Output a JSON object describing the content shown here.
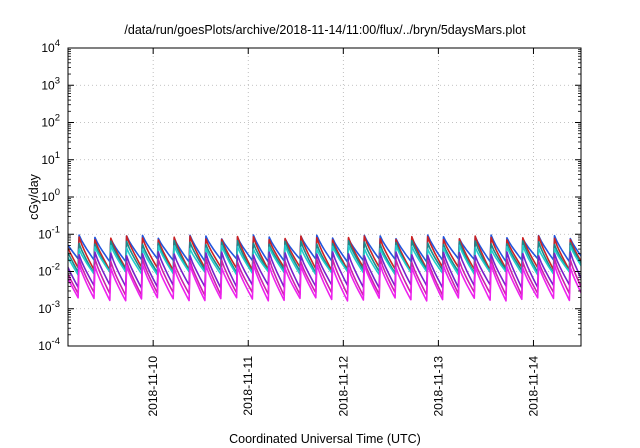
{
  "chart_data": {
    "type": "line",
    "title": "/data/run/goesPlots/archive/2018-11-14/11:00/flux/../bryn/5daysMars.plot",
    "xlabel": "Coordinated Universal Time (UTC)",
    "ylabel": "cGy/day",
    "yscale": "log",
    "ylim": [
      0.0001,
      10000
    ],
    "xlim": [
      "2018-11-09 02:30",
      "2018-11-14 12:00"
    ],
    "grid": true,
    "y_ticks": [
      {
        "base": "10",
        "exp": "-4"
      },
      {
        "base": "10",
        "exp": "-3"
      },
      {
        "base": "10",
        "exp": "-2"
      },
      {
        "base": "10",
        "exp": "-1"
      },
      {
        "base": "10",
        "exp": "0"
      },
      {
        "base": "10",
        "exp": "1"
      },
      {
        "base": "10",
        "exp": "2"
      },
      {
        "base": "10",
        "exp": "3"
      },
      {
        "base": "10",
        "exp": "4"
      }
    ],
    "x_ticks": [
      "2018-11-10",
      "2018-11-11",
      "2018-11-12",
      "2018-11-13",
      "2018-11-14"
    ],
    "sawtooth_period_hours": 4,
    "series": [
      {
        "color": "#2255dd",
        "peak": 0.085,
        "trough": 0.02
      },
      {
        "color": "#cc2222",
        "peak": 0.08,
        "trough": 0.012
      },
      {
        "color": "#1a8a8a",
        "peak": 0.06,
        "trough": 0.01
      },
      {
        "color": "#22cccc",
        "peak": 0.045,
        "trough": 0.009
      },
      {
        "color": "#7722cc",
        "peak": 0.03,
        "trough": 0.004
      },
      {
        "color": "#cc22aa",
        "peak": 0.02,
        "trough": 0.0025
      },
      {
        "color": "#ee22ee",
        "peak": 0.014,
        "trough": 0.0018
      }
    ]
  }
}
